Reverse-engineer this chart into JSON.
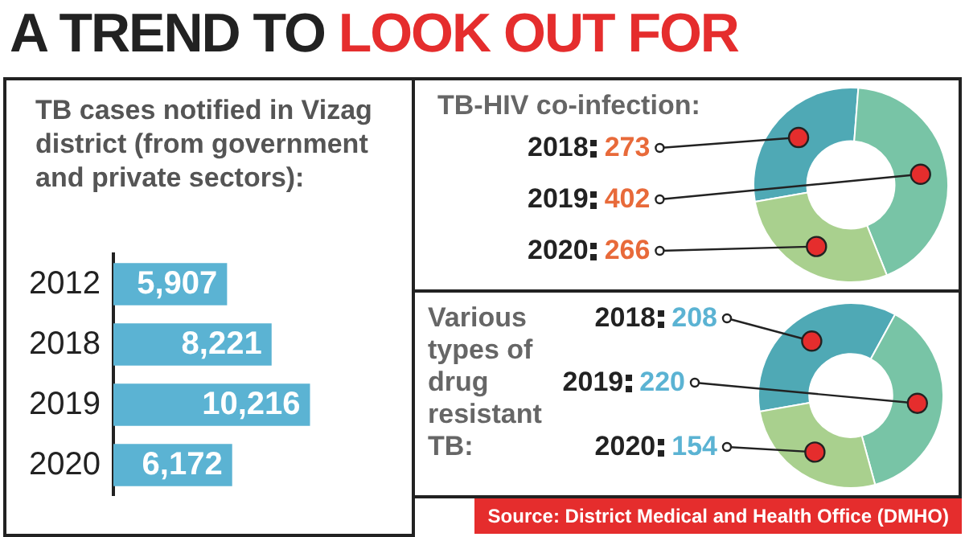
{
  "chart_data": [
    {
      "type": "bar",
      "orientation": "horizontal",
      "title": "A TREND TO LOOK OUT FOR",
      "subtitle": "TB cases notified in Vizag district (from government and private sectors):",
      "categories": [
        "2012",
        "2018",
        "2019",
        "2020"
      ],
      "values": [
        5907,
        8221,
        10216,
        6172
      ],
      "value_labels": [
        "5,907",
        "8,221",
        "10,216",
        "6,172"
      ],
      "color": "#5bb3d3",
      "tick_labels": "y",
      "legend": false
    },
    {
      "type": "donut",
      "title": "TB-HIV co-infection:",
      "categories": [
        "2018",
        "2019",
        "2020"
      ],
      "values": [
        273,
        402,
        266
      ],
      "colors": [
        "#4fa9b5",
        "#78c4a6",
        "#a9d08e"
      ],
      "data_labels": true,
      "legend": false
    },
    {
      "type": "donut",
      "title": "Various types of drug resistant TB:",
      "categories": [
        "2018",
        "2019",
        "2020"
      ],
      "values": [
        208,
        220,
        154
      ],
      "colors": [
        "#4fa9b5",
        "#78c4a6",
        "#a9d08e"
      ],
      "data_labels": true,
      "legend": false,
      "annotations": [
        "Source: District Medical and Health Office (DMHO)"
      ]
    }
  ]
}
